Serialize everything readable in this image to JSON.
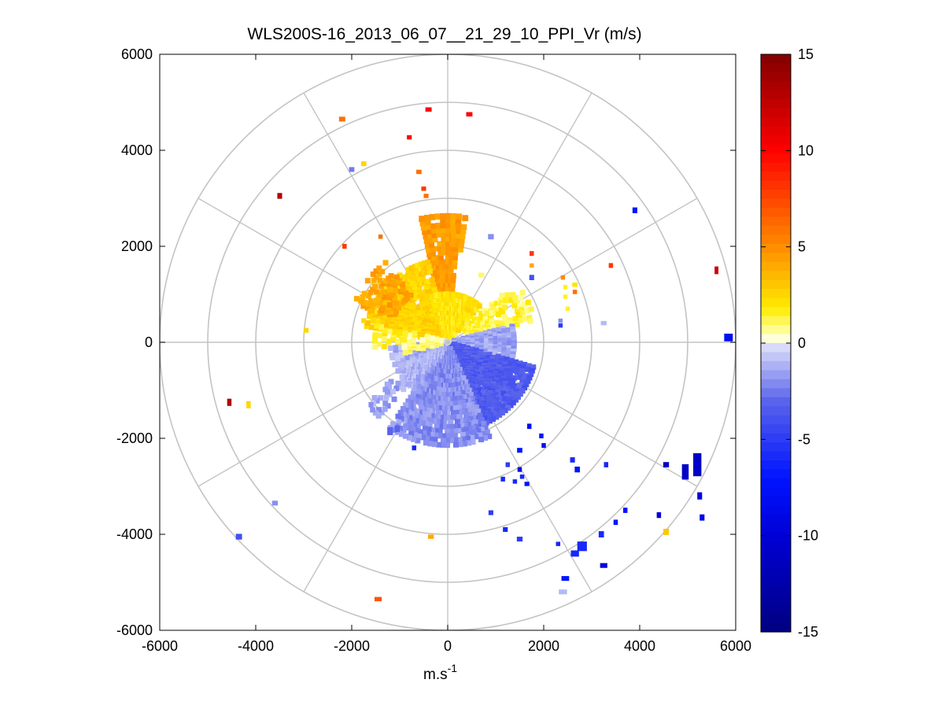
{
  "chart_data": {
    "type": "polar-ppi-scatter",
    "title": "WLS200S-16_2013_06_07__21_29_10_PPI_Vr (m/s)",
    "xlabel": "m.s",
    "xlabel_superscript": "-1",
    "ylabel": "",
    "xlim": [
      -6000,
      6000
    ],
    "ylim": [
      -6000,
      6000
    ],
    "x_ticks": [
      -6000,
      -4000,
      -2000,
      0,
      2000,
      4000,
      6000
    ],
    "y_ticks": [
      -6000,
      -4000,
      -2000,
      0,
      2000,
      4000,
      6000
    ],
    "x_tick_labels": [
      "-6000",
      "-4000",
      "-2000",
      "0",
      "2000",
      "4000",
      "6000"
    ],
    "y_tick_labels": [
      "-6000",
      "-4000",
      "-2000",
      "0",
      "2000",
      "4000",
      "6000"
    ],
    "polar_grid": {
      "ring_radii": [
        1000,
        2000,
        3000,
        4000,
        5000,
        6000
      ],
      "spoke_angles_deg": [
        0,
        30,
        60,
        90,
        120,
        150,
        180,
        210,
        240,
        270,
        300,
        330
      ]
    },
    "colorbar": {
      "min": -15,
      "max": 15,
      "ticks": [
        15,
        10,
        5,
        0,
        -5,
        -10,
        -15
      ],
      "tick_labels": [
        "15",
        "10",
        "5",
        "0",
        "-5",
        "-10",
        "-15"
      ],
      "colormap": "blue-white-yellow-red"
    },
    "clusters": [
      {
        "name": "north-orange-sector",
        "r_min": 300,
        "r_max": 2650,
        "az_min": -13,
        "az_max": 5,
        "v": 4.5,
        "density": 0.92
      },
      {
        "name": "north-orange-outer-strip",
        "r_min": 1900,
        "r_max": 2650,
        "az_min": 2,
        "az_max": 9,
        "v": 4.3,
        "density": 0.8
      },
      {
        "name": "northwest-yellow-core",
        "r_min": 150,
        "r_max": 1700,
        "az_min": -80,
        "az_max": -15,
        "v": 2.6,
        "density": 0.85
      },
      {
        "name": "northwest-orange-fringe",
        "r_min": 1200,
        "r_max": 2100,
        "az_min": -68,
        "az_max": -38,
        "v": 4.2,
        "density": 0.55
      },
      {
        "name": "north-yellow-inner",
        "r_min": 100,
        "r_max": 1000,
        "az_min": -20,
        "az_max": 40,
        "v": 2.0,
        "density": 0.9
      },
      {
        "name": "west-yellow-edge",
        "r_min": 900,
        "r_max": 1500,
        "az_min": -95,
        "az_max": -78,
        "v": 1.6,
        "density": 0.5
      },
      {
        "name": "northeast-yellow-wedge",
        "r_min": 400,
        "r_max": 1850,
        "az_min": 48,
        "az_max": 75,
        "v": 1.3,
        "density": 0.6
      },
      {
        "name": "east-blue-pale",
        "r_min": 100,
        "r_max": 1400,
        "az_min": 75,
        "az_max": 110,
        "v": -1.5,
        "density": 0.85
      },
      {
        "name": "southeast-blue",
        "r_min": 100,
        "r_max": 1850,
        "az_min": 105,
        "az_max": 160,
        "v": -3.5,
        "density": 0.9
      },
      {
        "name": "south-blue-pale",
        "r_min": 100,
        "r_max": 2100,
        "az_min": 155,
        "az_max": 215,
        "v": -2.0,
        "density": 0.88
      },
      {
        "name": "southwest-blue-pale",
        "r_min": 100,
        "r_max": 1200,
        "az_min": 210,
        "az_max": 265,
        "v": -1.2,
        "density": 0.7
      },
      {
        "name": "southwest-blue-streak",
        "r_min": 1200,
        "r_max": 2100,
        "az_min": 222,
        "az_max": 235,
        "v": -1.5,
        "density": 0.4
      },
      {
        "name": "west-yellow-pale",
        "r_min": 100,
        "r_max": 900,
        "az_min": 255,
        "az_max": 285,
        "v": 1.0,
        "density": 0.6
      }
    ],
    "pixels": [
      {
        "x": 5850,
        "y": 100,
        "w": 180,
        "h": 160,
        "v": -8
      },
      {
        "x": 5600,
        "y": 1500,
        "w": 80,
        "h": 160,
        "v": 12
      },
      {
        "x": 3900,
        "y": 2750,
        "w": 100,
        "h": 120,
        "v": -7
      },
      {
        "x": -3500,
        "y": 3050,
        "w": 100,
        "h": 120,
        "v": 13
      },
      {
        "x": -2200,
        "y": 4650,
        "w": 130,
        "h": 100,
        "v": 6
      },
      {
        "x": -400,
        "y": 4850,
        "w": 130,
        "h": 90,
        "v": 10
      },
      {
        "x": 450,
        "y": 4750,
        "w": 130,
        "h": 90,
        "v": 10
      },
      {
        "x": -800,
        "y": 4270,
        "w": 100,
        "h": 90,
        "v": 10
      },
      {
        "x": -1750,
        "y": 3720,
        "w": 110,
        "h": 100,
        "v": 2.5
      },
      {
        "x": -2000,
        "y": 3600,
        "w": 110,
        "h": 100,
        "v": -2.5
      },
      {
        "x": -600,
        "y": 3550,
        "w": 110,
        "h": 90,
        "v": 6
      },
      {
        "x": -500,
        "y": 3200,
        "w": 100,
        "h": 90,
        "v": 8
      },
      {
        "x": -450,
        "y": 3050,
        "w": 100,
        "h": 90,
        "v": 6
      },
      {
        "x": -2150,
        "y": 2000,
        "w": 90,
        "h": 100,
        "v": 8
      },
      {
        "x": -1400,
        "y": 2200,
        "w": 90,
        "h": 90,
        "v": 6
      },
      {
        "x": 1750,
        "y": 1850,
        "w": 90,
        "h": 100,
        "v": 8
      },
      {
        "x": 1750,
        "y": 1600,
        "w": 90,
        "h": 90,
        "v": 4
      },
      {
        "x": 1750,
        "y": 1350,
        "w": 100,
        "h": 110,
        "v": -4
      },
      {
        "x": 3400,
        "y": 1600,
        "w": 90,
        "h": 100,
        "v": 8
      },
      {
        "x": 2400,
        "y": 1350,
        "w": 90,
        "h": 90,
        "v": 5
      },
      {
        "x": 2650,
        "y": 1200,
        "w": 110,
        "h": 90,
        "v": 2
      },
      {
        "x": 2650,
        "y": 1050,
        "w": 90,
        "h": 90,
        "v": 6
      },
      {
        "x": 2450,
        "y": 1150,
        "w": 90,
        "h": 90,
        "v": 1.5
      },
      {
        "x": 2450,
        "y": 950,
        "w": 90,
        "h": 90,
        "v": 1.5
      },
      {
        "x": 2500,
        "y": 700,
        "w": 90,
        "h": 90,
        "v": 1.5
      },
      {
        "x": 2350,
        "y": 450,
        "w": 90,
        "h": 90,
        "v": -2
      },
      {
        "x": 2350,
        "y": 350,
        "w": 90,
        "h": 90,
        "v": -5
      },
      {
        "x": 3250,
        "y": 400,
        "w": 120,
        "h": 90,
        "v": -1
      },
      {
        "x": -2950,
        "y": 250,
        "w": 100,
        "h": 100,
        "v": 2.5
      },
      {
        "x": -4550,
        "y": -1250,
        "w": 90,
        "h": 150,
        "v": 13
      },
      {
        "x": -4150,
        "y": -1300,
        "w": 90,
        "h": 150,
        "v": 2.5
      },
      {
        "x": -1600,
        "y": -1300,
        "w": 100,
        "h": 110,
        "v": -2
      },
      {
        "x": -1200,
        "y": -1850,
        "w": 120,
        "h": 170,
        "v": -3
      },
      {
        "x": -1050,
        "y": -1800,
        "w": 110,
        "h": 140,
        "v": -3
      },
      {
        "x": -700,
        "y": -2200,
        "w": 90,
        "h": 100,
        "v": -6
      },
      {
        "x": 1700,
        "y": -1750,
        "w": 90,
        "h": 110,
        "v": -8
      },
      {
        "x": 1950,
        "y": -1950,
        "w": 90,
        "h": 100,
        "v": -7
      },
      {
        "x": 2000,
        "y": -2150,
        "w": 90,
        "h": 100,
        "v": -8
      },
      {
        "x": 1500,
        "y": -2250,
        "w": 110,
        "h": 100,
        "v": -7
      },
      {
        "x": 1500,
        "y": -2650,
        "w": 90,
        "h": 100,
        "v": -9
      },
      {
        "x": 1250,
        "y": -2550,
        "w": 90,
        "h": 100,
        "v": -5
      },
      {
        "x": 1150,
        "y": -2850,
        "w": 90,
        "h": 100,
        "v": -6
      },
      {
        "x": 1550,
        "y": -2800,
        "w": 90,
        "h": 90,
        "v": -6
      },
      {
        "x": 1650,
        "y": -2950,
        "w": 100,
        "h": 90,
        "v": -7
      },
      {
        "x": 1400,
        "y": -2900,
        "w": 90,
        "h": 90,
        "v": -6
      },
      {
        "x": 2700,
        "y": -2650,
        "w": 110,
        "h": 120,
        "v": -7
      },
      {
        "x": 2600,
        "y": -2450,
        "w": 100,
        "h": 110,
        "v": -6
      },
      {
        "x": 3300,
        "y": -2550,
        "w": 90,
        "h": 110,
        "v": -6
      },
      {
        "x": 4550,
        "y": -2550,
        "w": 120,
        "h": 110,
        "v": -11
      },
      {
        "x": 4950,
        "y": -2700,
        "w": 140,
        "h": 320,
        "v": -11
      },
      {
        "x": 5200,
        "y": -2550,
        "w": 170,
        "h": 480,
        "v": -11
      },
      {
        "x": 5250,
        "y": -3200,
        "w": 100,
        "h": 150,
        "v": -10
      },
      {
        "x": 5300,
        "y": -3650,
        "w": 100,
        "h": 130,
        "v": -9
      },
      {
        "x": 4550,
        "y": -3950,
        "w": 120,
        "h": 130,
        "v": 3
      },
      {
        "x": 4400,
        "y": -3600,
        "w": 90,
        "h": 120,
        "v": -10
      },
      {
        "x": 3700,
        "y": -3500,
        "w": 90,
        "h": 110,
        "v": -7
      },
      {
        "x": 3500,
        "y": -3750,
        "w": 90,
        "h": 110,
        "v": -7
      },
      {
        "x": 3200,
        "y": -4000,
        "w": 110,
        "h": 130,
        "v": -6
      },
      {
        "x": 2800,
        "y": -4250,
        "w": 200,
        "h": 200,
        "v": -6
      },
      {
        "x": 2650,
        "y": -4400,
        "w": 170,
        "h": 130,
        "v": -6
      },
      {
        "x": 2300,
        "y": -4200,
        "w": 90,
        "h": 90,
        "v": -6
      },
      {
        "x": 1500,
        "y": -4100,
        "w": 120,
        "h": 100,
        "v": -5
      },
      {
        "x": 1200,
        "y": -3900,
        "w": 100,
        "h": 100,
        "v": -6
      },
      {
        "x": 900,
        "y": -3550,
        "w": 100,
        "h": 100,
        "v": -5
      },
      {
        "x": 3250,
        "y": -4650,
        "w": 150,
        "h": 100,
        "v": -10
      },
      {
        "x": 2450,
        "y": -4920,
        "w": 160,
        "h": 100,
        "v": -7
      },
      {
        "x": 2400,
        "y": -5200,
        "w": 170,
        "h": 100,
        "v": -1
      },
      {
        "x": -350,
        "y": -4050,
        "w": 120,
        "h": 90,
        "v": 4
      },
      {
        "x": -1450,
        "y": -5350,
        "w": 150,
        "h": 90,
        "v": 7
      },
      {
        "x": -3600,
        "y": -3350,
        "w": 120,
        "h": 100,
        "v": -2
      },
      {
        "x": -4350,
        "y": -4050,
        "w": 130,
        "h": 120,
        "v": -4
      },
      {
        "x": -1600,
        "y": 650,
        "w": 150,
        "h": 110,
        "v": 3.5
      },
      {
        "x": -1750,
        "y": 450,
        "w": 100,
        "h": 100,
        "v": 2.5
      },
      {
        "x": 900,
        "y": 2200,
        "w": 120,
        "h": 110,
        "v": -2
      },
      {
        "x": 700,
        "y": 1400,
        "w": 120,
        "h": 100,
        "v": 1
      }
    ]
  }
}
